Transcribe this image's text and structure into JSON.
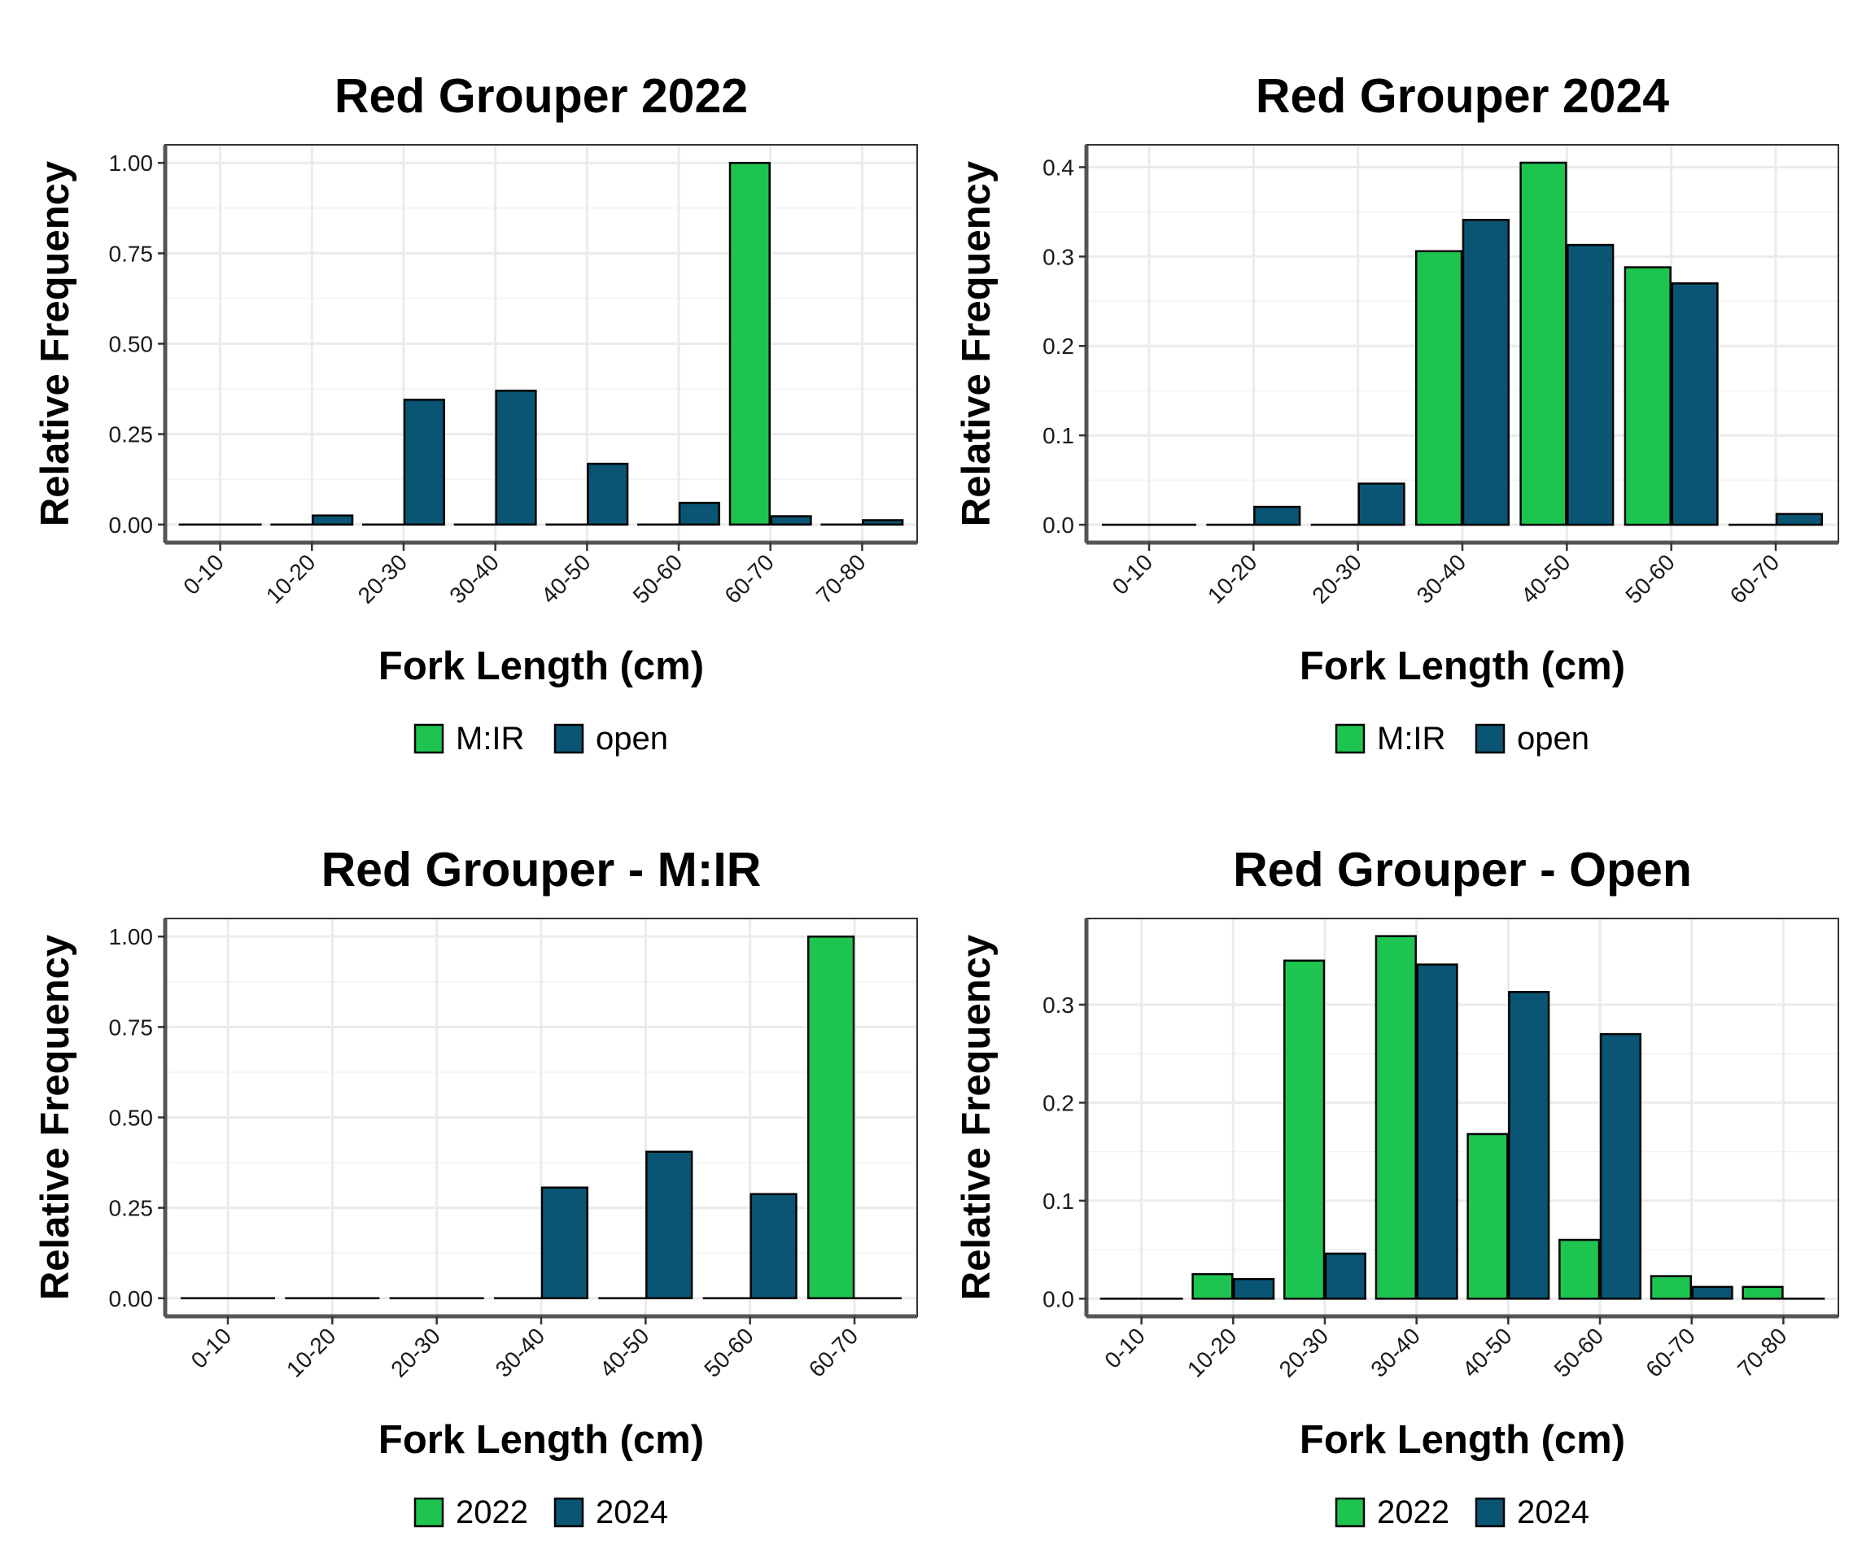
{
  "chart_data": [
    {
      "type": "bar",
      "title": "Red Grouper 2022",
      "xlabel": "Fork Length (cm)",
      "ylabel": "Relative Frequency",
      "categories": [
        "0-10",
        "10-20",
        "20-30",
        "30-40",
        "40-50",
        "50-60",
        "60-70",
        "70-80"
      ],
      "series": [
        {
          "name": "M:IR",
          "color": "#1DC550",
          "values": [
            0,
            0,
            0,
            0,
            0,
            0,
            1.0,
            0
          ]
        },
        {
          "name": "open",
          "color": "#0B5574",
          "values": [
            0,
            0.025,
            0.345,
            0.37,
            0.168,
            0.06,
            0.023,
            0.012
          ]
        }
      ],
      "ylim": [
        -0.05,
        1.05
      ],
      "yticks": [
        0,
        0.25,
        0.5,
        0.75,
        1.0
      ],
      "ytick_labels": [
        "0.00",
        "0.25",
        "0.50",
        "0.75",
        "1.00"
      ],
      "grid": true,
      "legend_position": "bottom"
    },
    {
      "type": "bar",
      "title": "Red Grouper 2024",
      "xlabel": "Fork Length (cm)",
      "ylabel": "Relative Frequency",
      "categories": [
        "0-10",
        "10-20",
        "20-30",
        "30-40",
        "40-50",
        "50-60",
        "60-70"
      ],
      "series": [
        {
          "name": "M:IR",
          "color": "#1DC550",
          "values": [
            0,
            0,
            0,
            0.306,
            0.405,
            0.288,
            0
          ]
        },
        {
          "name": "open",
          "color": "#0B5574",
          "values": [
            0,
            0.02,
            0.046,
            0.341,
            0.313,
            0.27,
            0.012
          ]
        }
      ],
      "ylim": [
        -0.02,
        0.425
      ],
      "yticks": [
        0,
        0.1,
        0.2,
        0.3,
        0.4
      ],
      "ytick_labels": [
        "0.0",
        "0.1",
        "0.2",
        "0.3",
        "0.4"
      ],
      "grid": true,
      "legend_position": "bottom"
    },
    {
      "type": "bar",
      "title": "Red Grouper - M:IR",
      "xlabel": "Fork Length (cm)",
      "ylabel": "Relative Frequency",
      "categories": [
        "0-10",
        "10-20",
        "20-30",
        "30-40",
        "40-50",
        "50-60",
        "60-70"
      ],
      "series": [
        {
          "name": "2022",
          "color": "#1DC550",
          "values": [
            0,
            0,
            0,
            0,
            0,
            0,
            1.0
          ]
        },
        {
          "name": "2024",
          "color": "#0B5574",
          "values": [
            0,
            0,
            0,
            0.306,
            0.405,
            0.288,
            0
          ]
        }
      ],
      "ylim": [
        -0.05,
        1.05
      ],
      "yticks": [
        0,
        0.25,
        0.5,
        0.75,
        1.0
      ],
      "ytick_labels": [
        "0.00",
        "0.25",
        "0.50",
        "0.75",
        "1.00"
      ],
      "grid": true,
      "legend_position": "bottom"
    },
    {
      "type": "bar",
      "title": "Red Grouper - Open",
      "xlabel": "Fork Length (cm)",
      "ylabel": "Relative Frequency",
      "categories": [
        "0-10",
        "10-20",
        "20-30",
        "30-40",
        "40-50",
        "50-60",
        "60-70",
        "70-80"
      ],
      "series": [
        {
          "name": "2022",
          "color": "#1DC550",
          "values": [
            0,
            0.025,
            0.345,
            0.37,
            0.168,
            0.06,
            0.023,
            0.012
          ]
        },
        {
          "name": "2024",
          "color": "#0B5574",
          "values": [
            0,
            0.02,
            0.046,
            0.341,
            0.313,
            0.27,
            0.012,
            0
          ]
        }
      ],
      "ylim": [
        -0.018,
        0.388
      ],
      "yticks": [
        0,
        0.1,
        0.2,
        0.3
      ],
      "ytick_labels": [
        "0.0",
        "0.1",
        "0.2",
        "0.3"
      ],
      "grid": true,
      "legend_position": "bottom"
    }
  ]
}
